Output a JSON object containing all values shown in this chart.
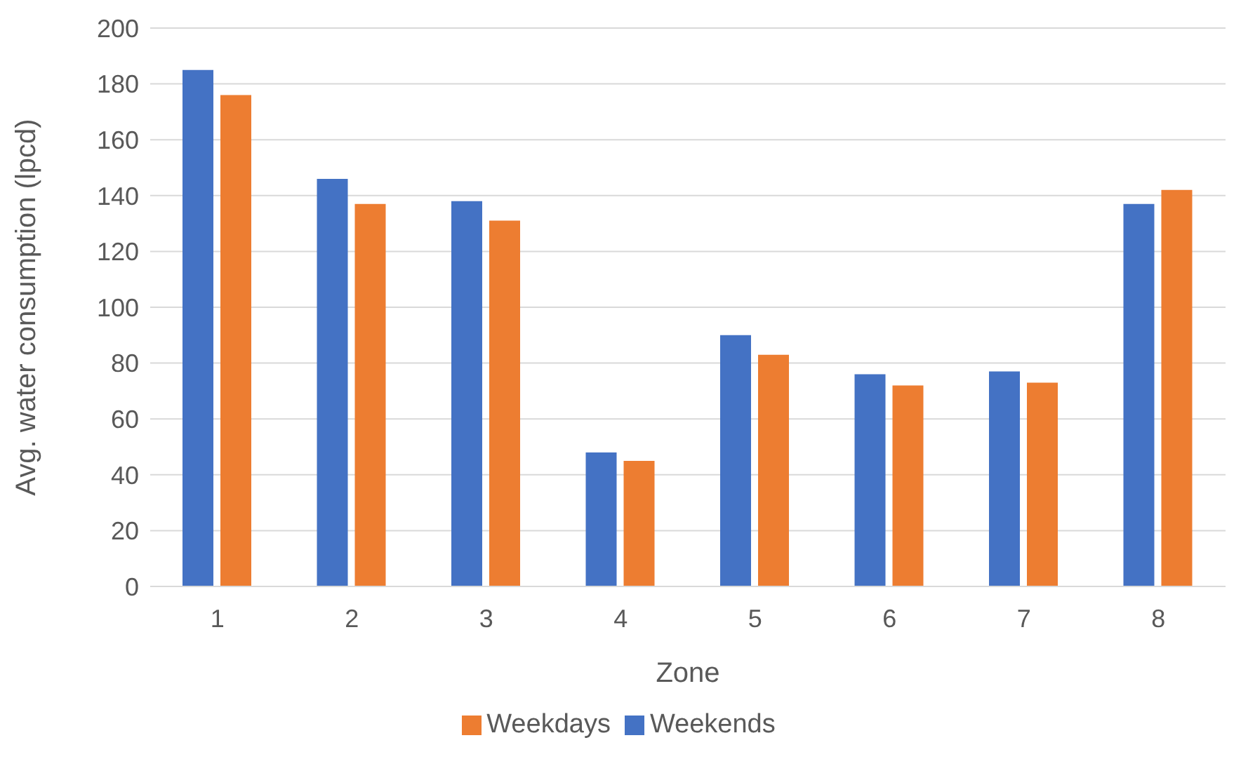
{
  "chart_data": {
    "type": "bar",
    "xlabel": "Zone",
    "ylabel": "Avg. water consumption (lpcd)",
    "categories": [
      "1",
      "2",
      "3",
      "4",
      "5",
      "6",
      "7",
      "8"
    ],
    "series": [
      {
        "name": "Weekends",
        "color": "#4472c4",
        "values": [
          185,
          146,
          138,
          48,
          90,
          76,
          77,
          137
        ]
      },
      {
        "name": "Weekdays",
        "color": "#ed7d31",
        "values": [
          176,
          137,
          131,
          45,
          83,
          72,
          73,
          142
        ]
      }
    ],
    "ylim": [
      0,
      200
    ],
    "yticks": [
      0,
      20,
      40,
      60,
      80,
      100,
      120,
      140,
      160,
      180,
      200
    ],
    "grid": "y",
    "legend": "bottom"
  }
}
